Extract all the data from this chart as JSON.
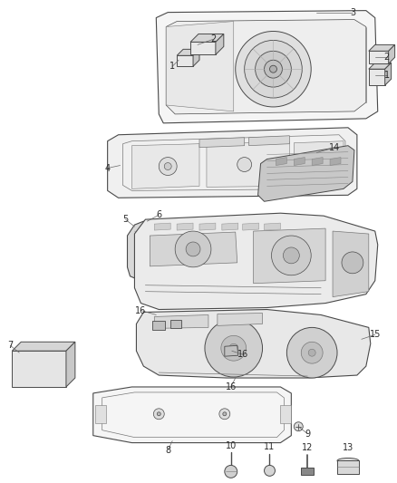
{
  "background_color": "#ffffff",
  "line_color": "#4a4a4a",
  "label_color": "#2a2a2a",
  "fig_width": 4.38,
  "fig_height": 5.33,
  "dpi": 100
}
